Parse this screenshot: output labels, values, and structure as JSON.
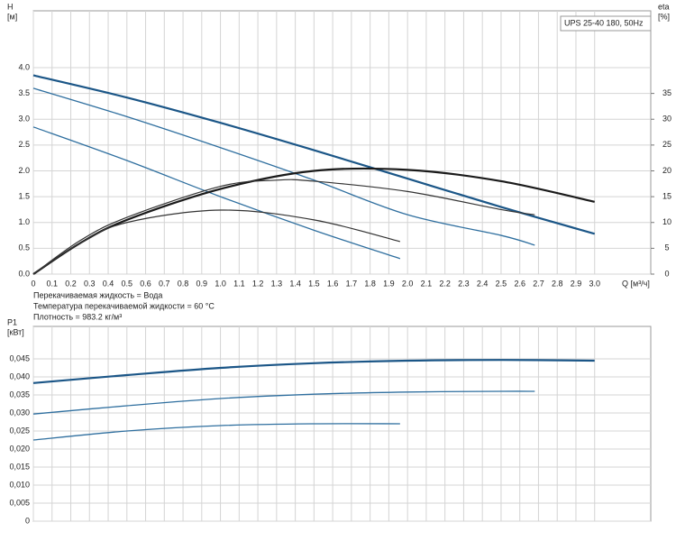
{
  "chart_data": [
    {
      "type": "line",
      "title": "UPS 25-40 180, 50Hz",
      "ylabel_lines": [
        "H",
        "[м]"
      ],
      "y2label_lines": [
        "eta",
        "[%]"
      ],
      "xlabel": "Q [м³/ч]",
      "annotations": [
        "Перекачиваемая жидкость = Вода",
        "Температура перекачиваемой жидкости = 60 °C",
        "Плотность = 983.2 кг/м³"
      ],
      "xlim": [
        0,
        3.3
      ],
      "xticks": [
        0,
        0.1,
        0.2,
        0.3,
        0.4,
        0.5,
        0.6,
        0.7,
        0.8,
        0.9,
        {
          "value": 1,
          "label": "1.0"
        },
        1.1,
        1.2,
        1.3,
        1.4,
        1.5,
        1.6,
        1.7,
        1.8,
        1.9,
        {
          "value": 2,
          "label": "2.0"
        },
        2.1,
        2.2,
        2.3,
        2.4,
        2.5,
        2.6,
        2.7,
        2.8,
        2.9,
        {
          "value": 3,
          "label": "3.0"
        }
      ],
      "ylim": [
        0,
        5.1
      ],
      "yticks": [
        {
          "value": 0,
          "label": "0.0"
        },
        0.5,
        {
          "value": 1,
          "label": "1.0"
        },
        1.5,
        {
          "value": 2,
          "label": "2.0"
        },
        2.5,
        {
          "value": 3,
          "label": "3.0"
        },
        3.5,
        {
          "value": 4,
          "label": "4.0"
        }
      ],
      "y2lim": [
        0,
        51
      ],
      "y2ticks": [
        0,
        5,
        10,
        15,
        20,
        25,
        30,
        35
      ],
      "grid": true,
      "series": [
        {
          "color": "#1b5687",
          "linewidth": 2.2,
          "x": [
            0,
            0.5,
            1,
            1.5,
            2,
            2.5,
            3
          ],
          "values": [
            3.85,
            3.42,
            2.93,
            2.4,
            1.85,
            1.3,
            0.78
          ]
        },
        {
          "color": "#2f6f9f",
          "linewidth": 1.3,
          "x": [
            0,
            0.5,
            1,
            1.5,
            2,
            2.5,
            2.68
          ],
          "values": [
            3.6,
            3.05,
            2.45,
            1.82,
            1.15,
            0.75,
            0.56
          ]
        },
        {
          "color": "#2f6f9f",
          "linewidth": 1.3,
          "x": [
            0,
            0.5,
            1,
            1.5,
            1.96
          ],
          "values": [
            2.85,
            2.2,
            1.5,
            0.85,
            0.3
          ]
        },
        {
          "color": "#1a1a1a",
          "linewidth": 2.2,
          "axis": "y2",
          "x": [
            0,
            0.25,
            0.5,
            1,
            1.5,
            2,
            2.5,
            3
          ],
          "values": [
            0,
            6,
            10.5,
            16.5,
            20,
            20.2,
            18,
            14
          ]
        },
        {
          "color": "#333333",
          "linewidth": 1.2,
          "axis": "y2",
          "x": [
            0,
            0.25,
            0.5,
            1,
            1.3,
            1.5,
            2,
            2.5,
            2.68
          ],
          "values": [
            0,
            6.5,
            11,
            17,
            18.2,
            18,
            16,
            12.5,
            11.5
          ]
        },
        {
          "color": "#333333",
          "linewidth": 1.2,
          "axis": "y2",
          "x": [
            0,
            0.25,
            0.5,
            1,
            1.5,
            1.96
          ],
          "values": [
            0,
            6,
            10,
            12.4,
            10.5,
            6.3
          ]
        }
      ]
    },
    {
      "type": "line",
      "ylabel_lines": [
        "P1",
        "[кВт]"
      ],
      "xlim": [
        0,
        3.3
      ],
      "ylim": [
        0,
        0.054
      ],
      "yticks": [
        0,
        {
          "value": 0.005,
          "label": "0,005"
        },
        {
          "value": 0.01,
          "label": "0,010"
        },
        {
          "value": 0.015,
          "label": "0,015"
        },
        {
          "value": 0.02,
          "label": "0,020"
        },
        {
          "value": 0.025,
          "label": "0,025"
        },
        {
          "value": 0.03,
          "label": "0,030"
        },
        {
          "value": 0.035,
          "label": "0,035"
        },
        {
          "value": 0.04,
          "label": "0,040"
        },
        {
          "value": 0.045,
          "label": "0,045"
        }
      ],
      "grid": true,
      "series": [
        {
          "color": "#1b5687",
          "linewidth": 2.2,
          "x": [
            0,
            0.5,
            1,
            1.5,
            2,
            2.5,
            3
          ],
          "values": [
            0.0383,
            0.0405,
            0.0425,
            0.0438,
            0.0445,
            0.0447,
            0.0445
          ]
        },
        {
          "color": "#2f6f9f",
          "linewidth": 1.3,
          "x": [
            0,
            0.5,
            1,
            1.5,
            2,
            2.5,
            2.68
          ],
          "values": [
            0.0297,
            0.032,
            0.034,
            0.0352,
            0.0358,
            0.036,
            0.036
          ]
        },
        {
          "color": "#2f6f9f",
          "linewidth": 1.3,
          "x": [
            0,
            0.5,
            1,
            1.5,
            1.96
          ],
          "values": [
            0.0225,
            0.025,
            0.0265,
            0.027,
            0.027
          ]
        }
      ]
    }
  ]
}
